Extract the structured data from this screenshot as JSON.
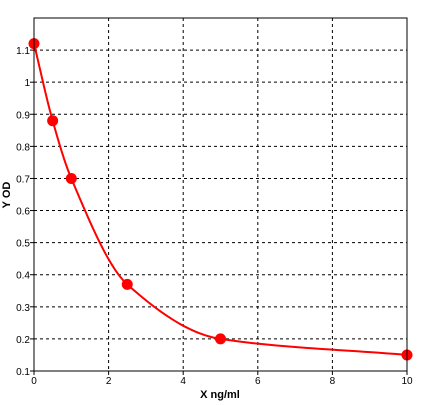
{
  "chart_data": {
    "type": "scatter",
    "title": "",
    "xlabel": "X ng/ml",
    "ylabel": "Y OD",
    "xlim": [
      0,
      10
    ],
    "ylim": [
      0.1,
      1.2
    ],
    "x_ticks": [
      "0",
      "2",
      "4",
      "6",
      "8",
      "10"
    ],
    "y_ticks": [
      "0.1",
      "0.2",
      "0.3",
      "0.4",
      "0.5",
      "0.6",
      "0.7",
      "0.8",
      "0.9",
      "1",
      "1.1"
    ],
    "grid": true,
    "grid_style": "dashed",
    "series": [
      {
        "x": [
          0,
          0.5,
          1,
          2.5,
          5,
          10
        ],
        "y": [
          1.12,
          0.88,
          0.7,
          0.37,
          0.2,
          0.15
        ]
      }
    ],
    "fit_curve": true,
    "colors": {
      "series": "#ff0000",
      "axis": "#000000",
      "grid": "#000000",
      "background": "#ffffff"
    }
  }
}
